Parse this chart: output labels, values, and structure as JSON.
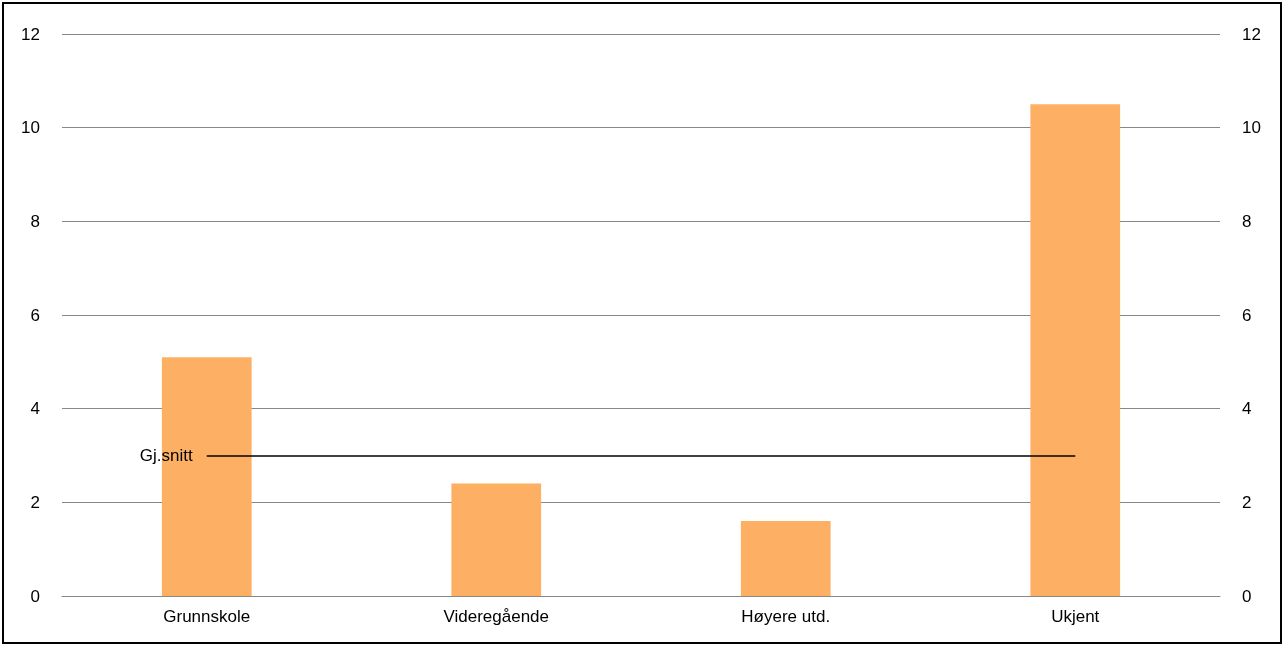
{
  "chart_data": {
    "type": "bar",
    "categories": [
      "Grunnskole",
      "Videregående",
      "Høyere utd.",
      "Ukjent"
    ],
    "values": [
      5.1,
      2.4,
      1.6,
      10.5
    ],
    "color": "#fdb064",
    "ylim": [
      0,
      12
    ],
    "yticks": [
      0,
      2,
      4,
      6,
      8,
      10,
      12
    ],
    "y2lim": [
      0,
      12
    ],
    "y2ticks": [
      0,
      2,
      4,
      6,
      8,
      10,
      12
    ],
    "ref_lines": [
      {
        "axis": "y",
        "value": 3,
        "label": "Gj.snitt",
        "color": "#000000"
      }
    ],
    "grid": "y"
  }
}
